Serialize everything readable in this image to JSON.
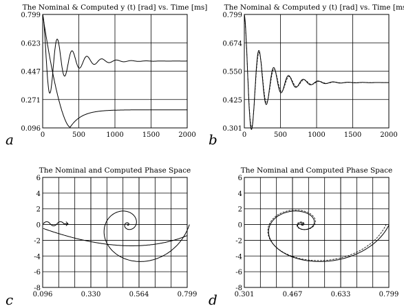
{
  "chart_data": [
    {
      "panel_label": "a",
      "type": "line",
      "title": "The Nominal & Computed y (t) [rad] vs. Time [ms]",
      "xlabel": "",
      "ylabel": "",
      "xlim": [
        0,
        2000
      ],
      "ylim": [
        0.096,
        0.799
      ],
      "xticks": [
        "0",
        "500",
        "1000",
        "1500",
        "2000"
      ],
      "yticks": [
        "0.096",
        "0.271",
        "0.447",
        "0.623",
        "0.799"
      ],
      "grid": true,
      "series": [
        {
          "style": "solid",
          "kind": "damped",
          "y0": 0.799,
          "yinf": 0.51,
          "amp": 0.42,
          "period": 205,
          "decay": 270
        },
        {
          "style": "solid",
          "kind": "dip",
          "y0": 0.799,
          "yinf": 0.208,
          "ymin": 0.1,
          "tmin": 380
        }
      ]
    },
    {
      "panel_label": "b",
      "type": "line",
      "title": "The Nominal & Computed y (t) [rad] vs. Time [ms]",
      "xlabel": "",
      "ylabel": "",
      "xlim": [
        0,
        2000
      ],
      "ylim": [
        0.301,
        0.799
      ],
      "xticks": [
        "0",
        "500",
        "1000",
        "1500",
        "2000"
      ],
      "yticks": [
        "0.301",
        "0.425",
        "0.550",
        "0.674",
        "0.799"
      ],
      "grid": true,
      "series": [
        {
          "style": "solid",
          "kind": "damped",
          "y0": 0.799,
          "yinf": 0.5,
          "amp": 0.3,
          "period": 205,
          "decay": 270
        },
        {
          "style": "dashed",
          "kind": "damped",
          "y0": 0.79,
          "yinf": 0.5,
          "amp": 0.29,
          "period": 208,
          "decay": 260
        }
      ]
    },
    {
      "panel_label": "c",
      "type": "line",
      "title": "The Nominal and Computed Phase Space",
      "xlabel": "",
      "ylabel": "",
      "xlim": [
        0.096,
        0.799
      ],
      "ylim": [
        -8,
        6
      ],
      "xticks": [
        "0.096",
        "0.330",
        "0.564",
        "0.799"
      ],
      "yticks": [
        "-8",
        "-6",
        "-4",
        "-2",
        "0",
        "2",
        "4",
        "6"
      ],
      "grid": true,
      "series": [
        {
          "style": "solid",
          "kind": "spiral",
          "cx": 0.51,
          "cy": 0.0,
          "a0": 0.3,
          "b0": 7.4,
          "decay": 0.32,
          "turns": 5
        },
        {
          "style": "solid",
          "kind": "hook",
          "start": [
            0.799,
            -1.4
          ],
          "mid": [
            0.52,
            -4.4
          ],
          "end": [
            0.099,
            -0.5
          ]
        }
      ]
    },
    {
      "panel_label": "d",
      "type": "line",
      "title": "The Nominal and Computed Phase Space",
      "xlabel": "",
      "ylabel": "",
      "xlim": [
        0.301,
        0.799
      ],
      "ylim": [
        -8,
        6
      ],
      "xticks": [
        "0.301",
        "0.467",
        "0.633",
        "0.799"
      ],
      "yticks": [
        "-8",
        "-6",
        "-4",
        "-2",
        "0",
        "2",
        "4",
        "6"
      ],
      "grid": true,
      "series": [
        {
          "style": "solid",
          "kind": "spiral",
          "cx": 0.5,
          "cy": 0.0,
          "a0": 0.3,
          "b0": 7.4,
          "decay": 0.32,
          "turns": 5
        },
        {
          "style": "dashed",
          "kind": "spiral",
          "cx": 0.5,
          "cy": 0.05,
          "a0": 0.29,
          "b0": 7.1,
          "decay": 0.3,
          "turns": 5
        }
      ]
    }
  ]
}
